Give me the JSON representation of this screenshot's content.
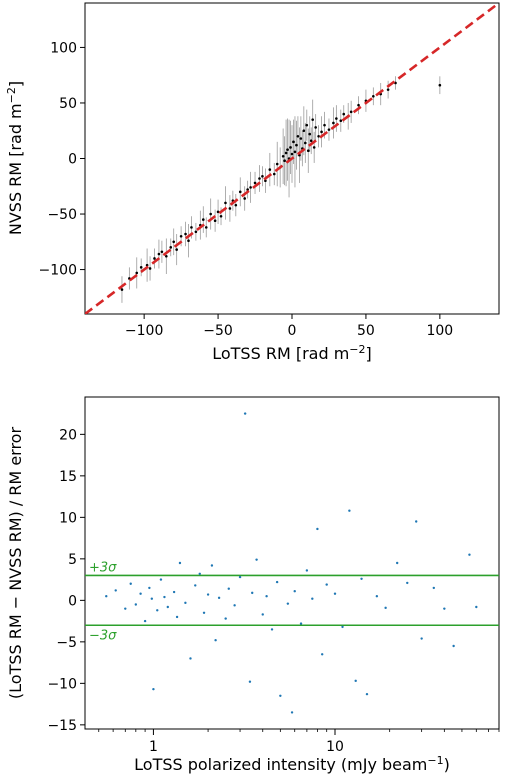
{
  "chart_data": [
    {
      "type": "scatter",
      "xlabel": "LoTSS RM [rad m",
      "xlabel_sup": "−2",
      "xlabel_close": "]",
      "ylabel": "NVSS RM [rad m",
      "ylabel_sup": "−2",
      "ylabel_close": "]",
      "xlim": [
        -140,
        140
      ],
      "ylim": [
        -140,
        140
      ],
      "xticks": [
        -100,
        -50,
        0,
        50,
        100
      ],
      "yticks": [
        -100,
        -50,
        0,
        50,
        100
      ],
      "xtick_labels": [
        "−100",
        "−50",
        "0",
        "50",
        "100"
      ],
      "ytick_labels": [
        "−100",
        "−50",
        "0",
        "50",
        "100"
      ],
      "reference_line": {
        "slope": 1,
        "intercept": 0,
        "style": "dashed",
        "color": "#d62728"
      },
      "point_color": "#000000",
      "errorbar_color": "#9a9a9a",
      "grid": false,
      "series": [
        {
          "x": [
            -115,
            -110,
            -105,
            -102,
            -98,
            -96,
            -93,
            -90,
            -88,
            -85,
            -82,
            -80,
            -78,
            -75,
            -72,
            -70,
            -68,
            -65,
            -62,
            -60,
            -58,
            -55,
            -52,
            -50,
            -48,
            -45,
            -42,
            -40,
            -38,
            -35,
            -32,
            -30,
            -28,
            -25,
            -22,
            -20,
            -18,
            -15,
            -12,
            -10,
            -8,
            -6,
            -5,
            -4,
            -3,
            -2,
            -1,
            0,
            1,
            2,
            3,
            4,
            5,
            6,
            7,
            8,
            9,
            10,
            11,
            12,
            13,
            14,
            15,
            16,
            18,
            20,
            22,
            25,
            28,
            30,
            33,
            35,
            38,
            40,
            45,
            50,
            55,
            60,
            65,
            70,
            100
          ],
          "y": [
            -118,
            -108,
            -103,
            -98,
            -96,
            -99,
            -90,
            -86,
            -84,
            -88,
            -80,
            -75,
            -82,
            -70,
            -68,
            -74,
            -62,
            -66,
            -60,
            -55,
            -62,
            -50,
            -56,
            -48,
            -52,
            -40,
            -45,
            -38,
            -42,
            -30,
            -36,
            -28,
            -26,
            -22,
            -18,
            -16,
            -20,
            -10,
            -14,
            -5,
            -8,
            2,
            -2,
            5,
            8,
            0,
            10,
            4,
            15,
            6,
            12,
            20,
            3,
            18,
            9,
            25,
            14,
            30,
            7,
            22,
            16,
            35,
            10,
            28,
            20,
            24,
            30,
            26,
            32,
            36,
            34,
            40,
            38,
            42,
            48,
            52,
            56,
            58,
            62,
            68,
            66
          ],
          "yerr": [
            12,
            10,
            14,
            8,
            15,
            11,
            9,
            13,
            10,
            16,
            8,
            12,
            14,
            9,
            11,
            15,
            10,
            8,
            13,
            12,
            9,
            14,
            10,
            11,
            8,
            15,
            12,
            9,
            10,
            13,
            11,
            8,
            14,
            10,
            12,
            9,
            11,
            15,
            10,
            20,
            18,
            25,
            22,
            30,
            28,
            35,
            24,
            26,
            20,
            32,
            22,
            18,
            25,
            20,
            16,
            22,
            18,
            14,
            20,
            16,
            12,
            18,
            14,
            12,
            10,
            14,
            12,
            10,
            14,
            12,
            10,
            8,
            12,
            10,
            8,
            10,
            8,
            10,
            8,
            6,
            8
          ]
        }
      ]
    },
    {
      "type": "scatter",
      "xlabel": "LoTSS polarized intensity (mJy beam",
      "xlabel_sup": "−1",
      "xlabel_close": ")",
      "ylabel": "(LoTSS RM − NVSS RM) / RM error",
      "xscale": "log",
      "xlim": [
        0.42,
        80
      ],
      "ylim": [
        -15.5,
        24.5
      ],
      "xticks": [
        1,
        10
      ],
      "xtick_labels": [
        "1",
        "10"
      ],
      "yticks": [
        -15,
        -10,
        -5,
        0,
        5,
        10,
        15,
        20
      ],
      "ytick_labels": [
        "−15",
        "−10",
        "−5",
        "0",
        "5",
        "10",
        "15",
        "20"
      ],
      "hlines": [
        {
          "y": 3,
          "label": "+3σ",
          "color": "#2ca02c"
        },
        {
          "y": -3,
          "label": "−3σ",
          "color": "#2ca02c"
        }
      ],
      "point_color": "#1f77b4",
      "grid": false,
      "series": [
        {
          "x": [
            0.55,
            0.62,
            0.7,
            0.75,
            0.8,
            0.85,
            0.9,
            0.95,
            0.98,
            1.0,
            1.05,
            1.1,
            1.15,
            1.2,
            1.3,
            1.35,
            1.4,
            1.5,
            1.6,
            1.7,
            1.8,
            1.9,
            2.0,
            2.1,
            2.2,
            2.3,
            2.5,
            2.6,
            2.8,
            3.0,
            3.2,
            3.4,
            3.5,
            3.7,
            4.0,
            4.2,
            4.5,
            4.8,
            5.0,
            5.5,
            5.8,
            6.0,
            6.5,
            7.0,
            7.5,
            8.0,
            8.5,
            9.0,
            10.0,
            11.0,
            12.0,
            13.0,
            14.0,
            15.0,
            17.0,
            19.0,
            22.0,
            25.0,
            28.0,
            30.0,
            35.0,
            40.0,
            45.0,
            55.0,
            60.0
          ],
          "y": [
            0.5,
            1.2,
            -1.0,
            2.0,
            -0.5,
            0.8,
            -2.5,
            1.5,
            0.2,
            -10.7,
            -1.2,
            2.5,
            0.4,
            -0.8,
            1.0,
            -2.0,
            4.5,
            -0.3,
            -7.0,
            1.8,
            3.2,
            -1.5,
            0.7,
            4.2,
            -4.8,
            0.3,
            -2.2,
            1.4,
            -0.6,
            2.8,
            22.5,
            -9.8,
            0.9,
            4.9,
            -1.7,
            0.5,
            -3.5,
            2.2,
            -11.5,
            -0.4,
            -13.5,
            1.1,
            -2.8,
            3.6,
            0.2,
            8.6,
            -6.5,
            1.9,
            0.8,
            -3.2,
            10.8,
            -9.7,
            2.6,
            -11.3,
            0.5,
            -0.9,
            4.5,
            2.1,
            9.5,
            -4.6,
            1.5,
            -1.0,
            -5.5,
            5.5,
            -0.8
          ]
        }
      ]
    }
  ]
}
